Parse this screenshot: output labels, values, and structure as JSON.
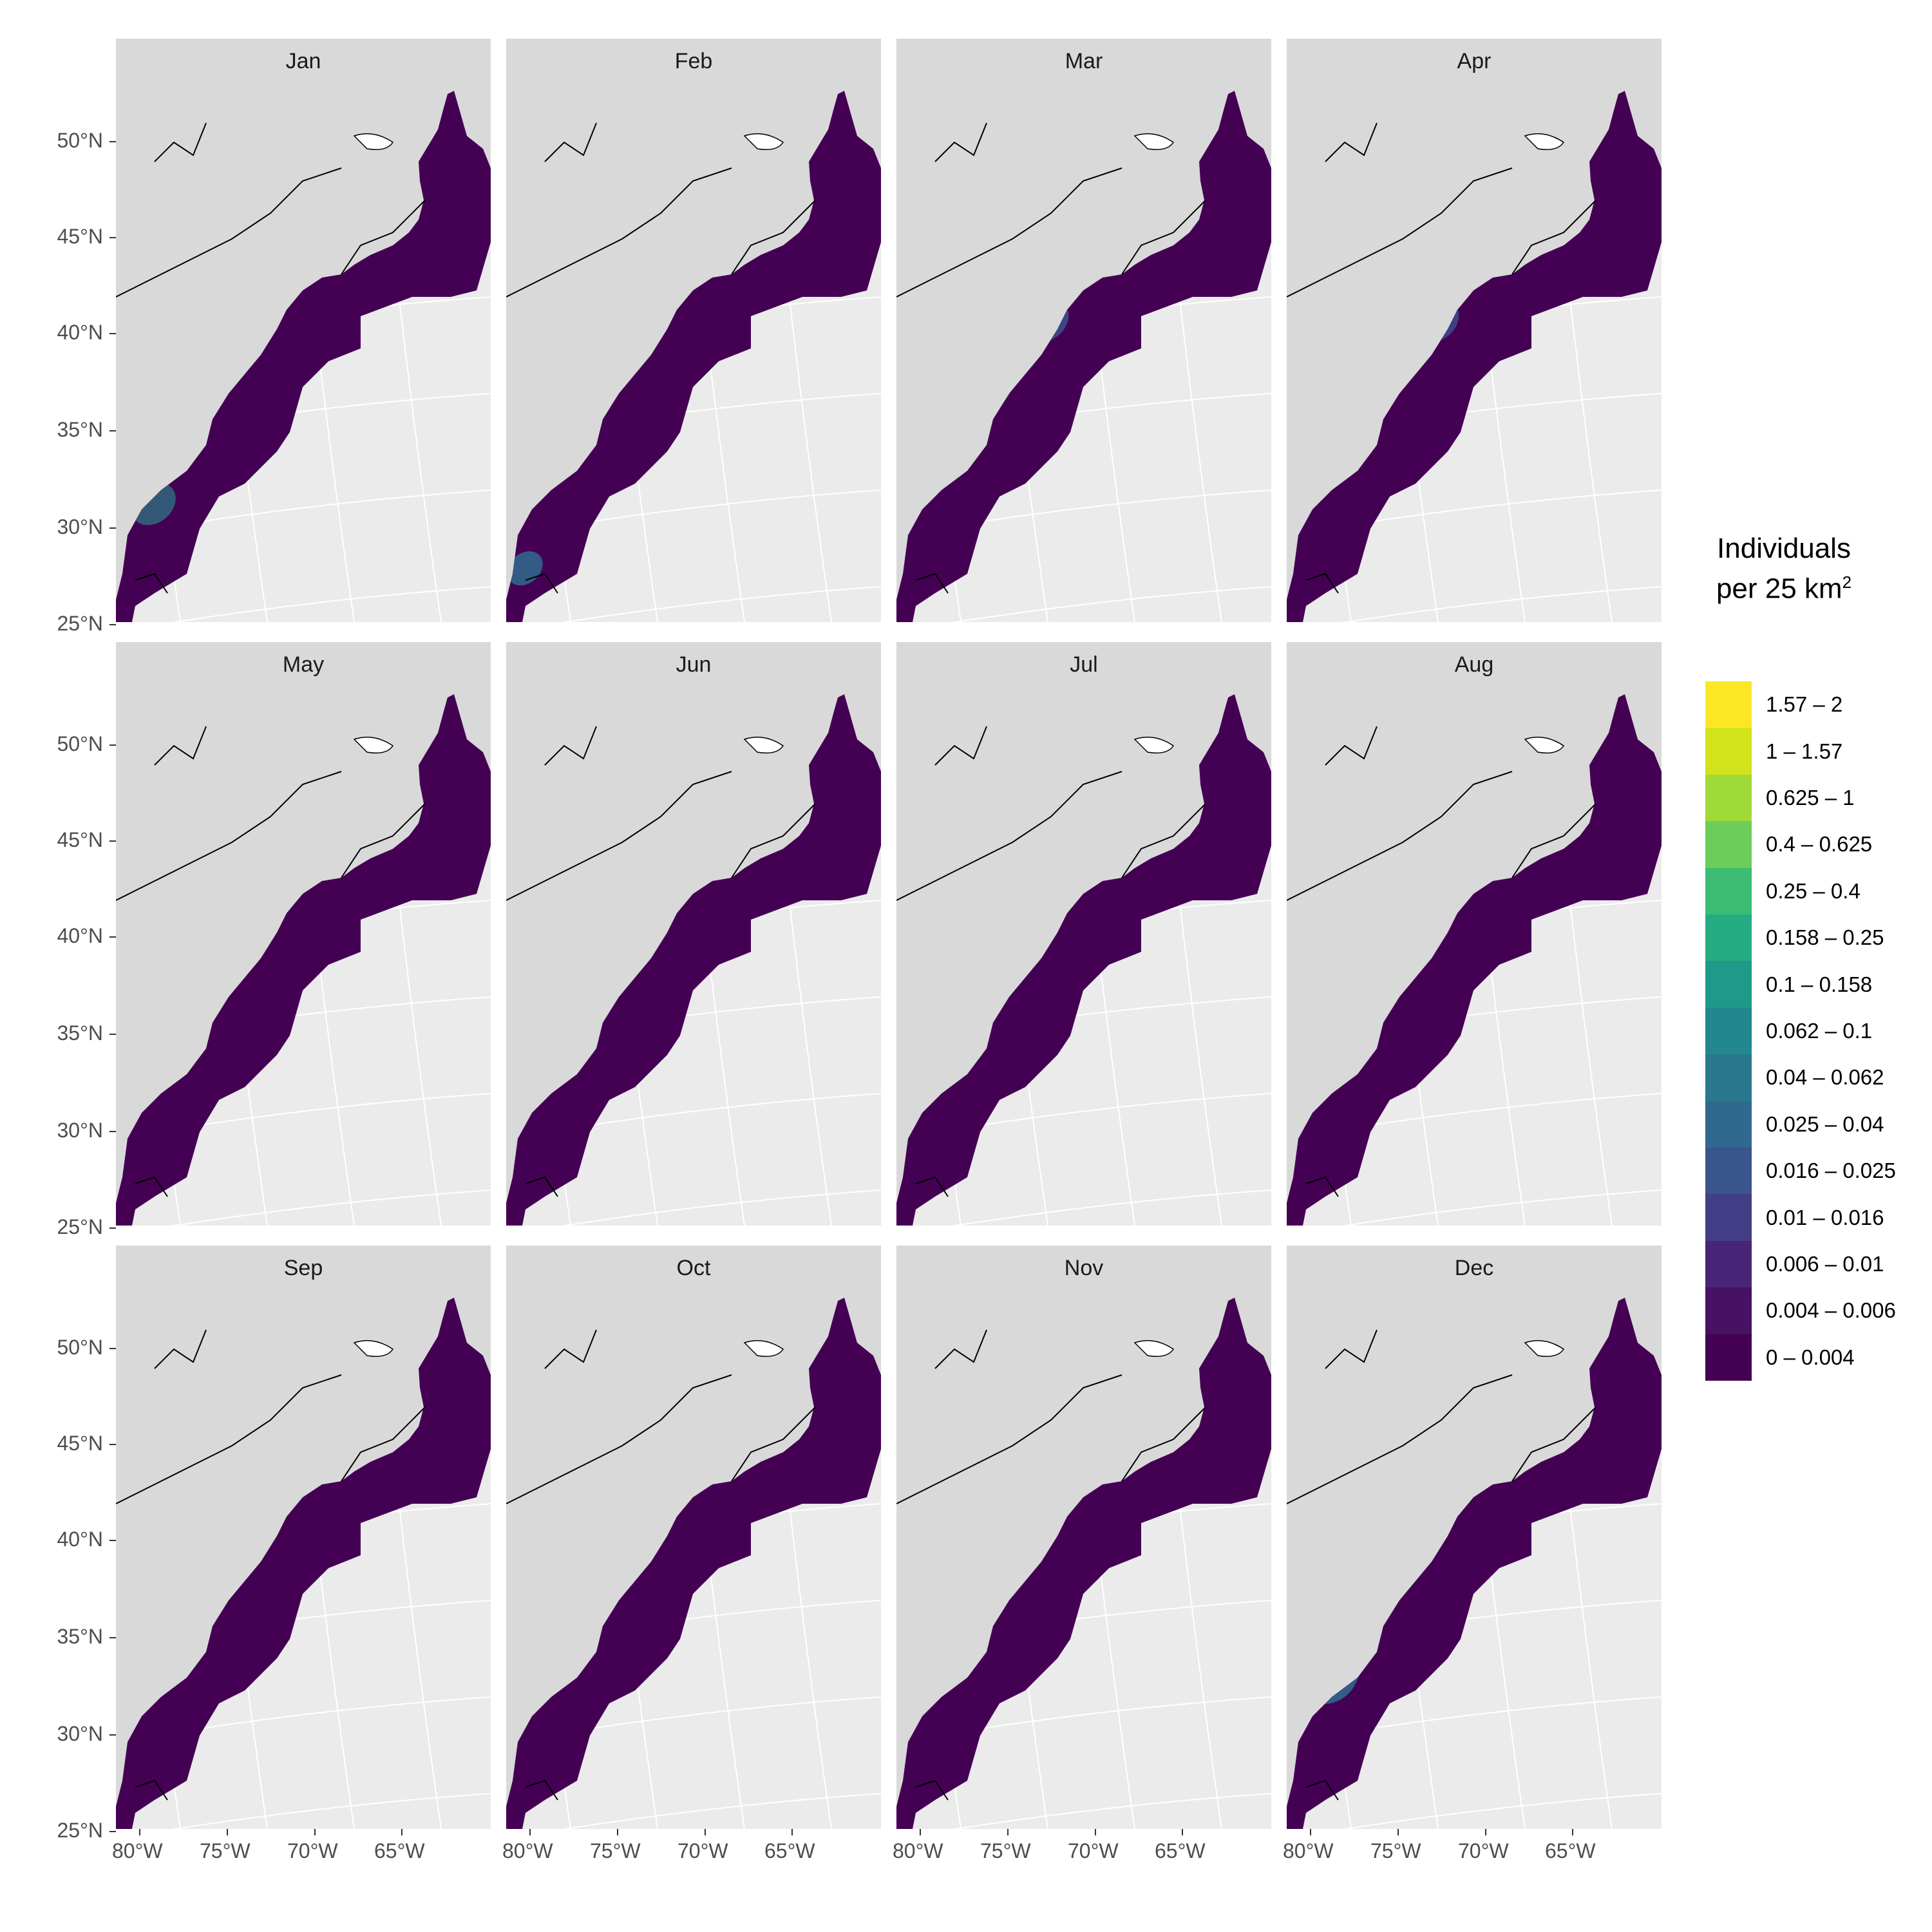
{
  "panels": [
    {
      "label": "Jan",
      "hot": [
        [
          0.22,
          0.54,
          "#2ea37d",
          0.09
        ],
        [
          0.3,
          0.46,
          "#7ad151",
          0.06
        ],
        [
          0.18,
          0.62,
          "#3f8a8c",
          0.06
        ],
        [
          0.1,
          0.78,
          "#30697e",
          0.05
        ]
      ]
    },
    {
      "label": "Feb",
      "hot": [
        [
          0.22,
          0.54,
          "#2a9a80",
          0.08
        ],
        [
          0.31,
          0.46,
          "#b2dd2d",
          0.05
        ],
        [
          0.17,
          0.63,
          "#2e7d8c",
          0.07
        ],
        [
          0.05,
          0.9,
          "#2f6b8e",
          0.04
        ]
      ]
    },
    {
      "label": "Mar",
      "hot": [
        [
          0.26,
          0.48,
          "#5cc863",
          0.07
        ],
        [
          0.23,
          0.56,
          "#25858e",
          0.07
        ],
        [
          0.4,
          0.44,
          "#3b528b",
          0.05
        ]
      ]
    },
    {
      "label": "Apr",
      "hot": [
        [
          0.26,
          0.48,
          "#7ad151",
          0.06
        ],
        [
          0.22,
          0.56,
          "#2c718e",
          0.07
        ],
        [
          0.4,
          0.44,
          "#3e4a89",
          0.05
        ]
      ]
    },
    {
      "label": "May",
      "hot": [
        [
          0.48,
          0.22,
          "#2e6f8e",
          0.07
        ],
        [
          0.4,
          0.33,
          "#2f8f8a",
          0.05
        ],
        [
          0.3,
          0.46,
          "#b5de2b",
          0.07
        ],
        [
          0.22,
          0.54,
          "#35b779",
          0.06
        ]
      ]
    },
    {
      "label": "Jun",
      "hot": [
        [
          0.48,
          0.22,
          "#3a528b",
          0.08
        ],
        [
          0.34,
          0.38,
          "#2c718e",
          0.06
        ],
        [
          0.3,
          0.46,
          "#2ea37d",
          0.05
        ]
      ]
    },
    {
      "label": "Jul",
      "hot": [
        [
          0.48,
          0.22,
          "#3b528b",
          0.06
        ],
        [
          0.4,
          0.34,
          "#2c728e",
          0.06
        ],
        [
          0.31,
          0.42,
          "#3f8a8c",
          0.06
        ]
      ]
    },
    {
      "label": "Aug",
      "hot": [
        [
          0.5,
          0.2,
          "#3e4a89",
          0.07
        ],
        [
          0.42,
          0.32,
          "#2ea37d",
          0.03
        ],
        [
          0.26,
          0.47,
          "#2f6b8e",
          0.03
        ]
      ]
    },
    {
      "label": "Sep",
      "hot": [
        [
          0.5,
          0.2,
          "#3e4a89",
          0.07
        ],
        [
          0.4,
          0.35,
          "#26828e",
          0.03
        ],
        [
          0.28,
          0.47,
          "#2c718e",
          0.03
        ]
      ]
    },
    {
      "label": "Oct",
      "hot": [
        [
          0.52,
          0.18,
          "#21918c",
          0.08
        ],
        [
          0.44,
          0.29,
          "#25858e",
          0.04
        ],
        [
          0.36,
          0.37,
          "#2e6f8e",
          0.04
        ],
        [
          0.3,
          0.46,
          "#2c728e",
          0.03
        ]
      ]
    },
    {
      "label": "Nov",
      "hot": [
        [
          0.58,
          0.15,
          "#5cc863",
          0.03
        ],
        [
          0.46,
          0.24,
          "#3b528b",
          0.05
        ],
        [
          0.4,
          0.36,
          "#35b779",
          0.05
        ],
        [
          0.3,
          0.46,
          "#2ea37d",
          0.04
        ],
        [
          0.2,
          0.57,
          "#3e4a89",
          0.05
        ]
      ]
    },
    {
      "label": "Dec",
      "hot": [
        [
          0.44,
          0.34,
          "#3f8a8c",
          0.05
        ],
        [
          0.36,
          0.43,
          "#a0da39",
          0.05
        ],
        [
          0.26,
          0.52,
          "#2c718e",
          0.07
        ],
        [
          0.12,
          0.72,
          "#2f6b8e",
          0.06
        ]
      ]
    }
  ],
  "y_axis_labels": [
    "50°N",
    "45°N",
    "40°N",
    "35°N",
    "30°N",
    "25°N"
  ],
  "x_axis_labels": [
    "80°W",
    "75°W",
    "70°W",
    "65°W"
  ],
  "legend": {
    "title_line1": "Individuals",
    "title_line2": "per 25 km",
    "title_sup": "2",
    "bins": [
      {
        "label": "1.57 – 2",
        "color": "#fde725"
      },
      {
        "label": "1 – 1.57",
        "color": "#d2e21b"
      },
      {
        "label": "0.625 – 1",
        "color": "#a0da39"
      },
      {
        "label": "0.4 – 0.625",
        "color": "#6ccd5a"
      },
      {
        "label": "0.25 – 0.4",
        "color": "#3dbc74"
      },
      {
        "label": "0.158 – 0.25",
        "color": "#25ac82"
      },
      {
        "label": "0.1 – 0.158",
        "color": "#1f9a8a"
      },
      {
        "label": "0.062 – 0.1",
        "color": "#22888e"
      },
      {
        "label": "0.04 – 0.062",
        "color": "#29788e"
      },
      {
        "label": "0.025 – 0.04",
        "color": "#31688e"
      },
      {
        "label": "0.016 – 0.025",
        "color": "#3a548c"
      },
      {
        "label": "0.01 – 0.016",
        "color": "#433e85"
      },
      {
        "label": "0.006 – 0.01",
        "color": "#482576"
      },
      {
        "label": "0.004 – 0.006",
        "color": "#471164"
      },
      {
        "label": "0 – 0.004",
        "color": "#440154"
      }
    ]
  },
  "colors": {
    "domain": "#440154",
    "land": "#d9d9d9",
    "ocean_bg": "#ebebeb",
    "grid": "#ffffff"
  }
}
